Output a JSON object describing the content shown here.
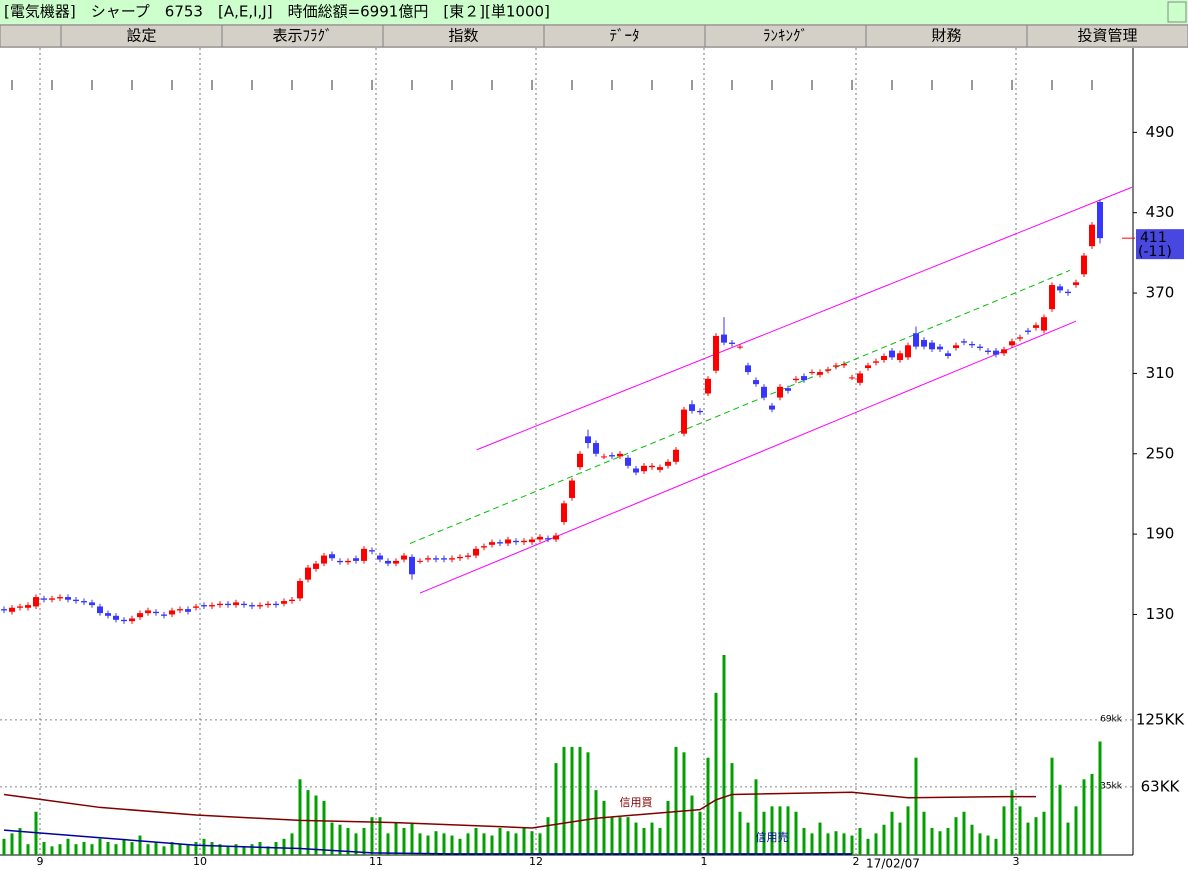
{
  "header": {
    "title": "[電気機器]　シャープ　6753　[A,E,I,J]　時価総額=6991億円　[東２][単1000]",
    "menu": [
      "設定",
      "表示ﾌﾗｸﾞ",
      "指数",
      "ﾃﾞｰﾀ",
      "ﾗﾝｷﾝｸﾞ",
      "財務",
      "投資管理"
    ]
  },
  "chart_data": [
    {
      "type": "candlestick",
      "up_color": "#ff0000",
      "down_color": "#3636ff",
      "ylim": [
        96,
        553
      ],
      "yticks": [
        130,
        190,
        250,
        310,
        370,
        430,
        490
      ],
      "categories": [
        null,
        null,
        null,
        null,
        null,
        "9",
        null,
        null,
        null,
        null,
        null,
        null,
        null,
        null,
        null,
        null,
        null,
        null,
        null,
        null,
        null,
        null,
        null,
        null,
        null,
        "10",
        null,
        null,
        null,
        null,
        null,
        null,
        null,
        null,
        null,
        null,
        null,
        null,
        null,
        null,
        null,
        null,
        null,
        null,
        null,
        null,
        null,
        "11",
        null,
        null,
        null,
        null,
        null,
        null,
        null,
        null,
        null,
        null,
        null,
        null,
        null,
        null,
        null,
        null,
        null,
        null,
        null,
        "12",
        null,
        null,
        null,
        null,
        null,
        null,
        null,
        null,
        null,
        null,
        null,
        null,
        null,
        null,
        null,
        null,
        null,
        null,
        null,
        null,
        "1",
        null,
        null,
        null,
        null,
        null,
        null,
        null,
        null,
        null,
        null,
        null,
        null,
        null,
        null,
        null,
        null,
        null,
        null,
        "2",
        null,
        null,
        null,
        null,
        null,
        null,
        null,
        null,
        null,
        null,
        null,
        null,
        null,
        null,
        null,
        null,
        null,
        null,
        null,
        "3",
        null,
        null,
        null,
        null,
        null,
        null,
        null,
        null,
        null,
        null
      ],
      "open": [
        134,
        132,
        135,
        135,
        136,
        142,
        141,
        142,
        143,
        141,
        140,
        139,
        136,
        131,
        129,
        126,
        125,
        128,
        131,
        132,
        130,
        130,
        133,
        134,
        135,
        137,
        136,
        137,
        138,
        137,
        138,
        137,
        136,
        137,
        138,
        138,
        140,
        142,
        156,
        164,
        168,
        175,
        170,
        169,
        172,
        170,
        178,
        174,
        170,
        168,
        171,
        173,
        170,
        171,
        172,
        172,
        171,
        172,
        173,
        174,
        180,
        182,
        184,
        183,
        185,
        184,
        184,
        186,
        187,
        186,
        199,
        217,
        240,
        263,
        258,
        248,
        249,
        248,
        247,
        239,
        237,
        240,
        238,
        241,
        244,
        265,
        287,
        282,
        295,
        312,
        339,
        333,
        330,
        316,
        305,
        300,
        286,
        292,
        299,
        305,
        308,
        311,
        309,
        312,
        315,
        316,
        307,
        303,
        314,
        318,
        320,
        327,
        320,
        322,
        340,
        335,
        333,
        330,
        325,
        329,
        334,
        332,
        330,
        327,
        327,
        325,
        331,
        336,
        342,
        344,
        342,
        358,
        375,
        371,
        376,
        384,
        405,
        438
      ],
      "high": [
        136,
        137,
        138,
        139,
        145,
        144,
        144,
        145,
        145,
        143,
        142,
        141,
        138,
        133,
        131,
        128,
        129,
        133,
        135,
        134,
        132,
        135,
        136,
        136,
        138,
        139,
        139,
        140,
        140,
        141,
        140,
        139,
        139,
        140,
        140,
        142,
        143,
        157,
        167,
        170,
        176,
        177,
        172,
        172,
        174,
        181,
        180,
        176,
        172,
        172,
        176,
        175,
        172,
        174,
        174,
        174,
        174,
        175,
        176,
        181,
        183,
        186,
        186,
        188,
        187,
        187,
        188,
        190,
        189,
        191,
        215,
        232,
        252,
        268,
        260,
        250,
        251,
        252,
        249,
        241,
        243,
        243,
        242,
        246,
        255,
        285,
        290,
        284,
        308,
        340,
        352,
        335,
        332,
        318,
        307,
        302,
        288,
        302,
        301,
        308,
        310,
        313,
        313,
        315,
        318,
        319,
        309,
        312,
        318,
        321,
        325,
        329,
        327,
        333,
        345,
        337,
        335,
        332,
        327,
        333,
        336,
        334,
        332,
        329,
        329,
        330,
        336,
        339,
        344,
        348,
        354,
        378,
        377,
        373,
        380,
        400,
        423,
        440
      ],
      "low": [
        131,
        130,
        133,
        133,
        134,
        139,
        139,
        140,
        139,
        138,
        137,
        135,
        129,
        127,
        124,
        123,
        123,
        126,
        129,
        129,
        127,
        128,
        131,
        130,
        133,
        134,
        134,
        135,
        135,
        135,
        135,
        134,
        134,
        135,
        135,
        136,
        138,
        140,
        154,
        162,
        166,
        170,
        167,
        167,
        168,
        168,
        175,
        169,
        166,
        166,
        169,
        156,
        168,
        169,
        169,
        169,
        169,
        170,
        171,
        172,
        178,
        180,
        181,
        181,
        182,
        182,
        182,
        184,
        184,
        184,
        197,
        215,
        238,
        254,
        248,
        246,
        246,
        246,
        239,
        234,
        235,
        238,
        236,
        239,
        242,
        263,
        280,
        279,
        293,
        310,
        331,
        330,
        328,
        309,
        300,
        290,
        281,
        290,
        295,
        303,
        303,
        309,
        307,
        310,
        313,
        314,
        305,
        301,
        312,
        316,
        318,
        320,
        318,
        320,
        328,
        328,
        326,
        326,
        321,
        327,
        331,
        329,
        327,
        324,
        322,
        323,
        329,
        334,
        339,
        342,
        340,
        356,
        370,
        368,
        374,
        382,
        403,
        407
      ],
      "close": [
        133,
        135,
        136,
        137,
        143,
        141,
        142,
        143,
        141,
        140,
        139,
        137,
        131,
        129,
        126,
        125,
        127,
        131,
        133,
        131,
        129,
        133,
        134,
        132,
        136,
        136,
        137,
        138,
        137,
        139,
        137,
        136,
        137,
        138,
        137,
        140,
        141,
        155,
        165,
        168,
        174,
        172,
        169,
        170,
        170,
        179,
        177,
        171,
        168,
        170,
        174,
        160,
        170,
        172,
        171,
        171,
        172,
        173,
        174,
        179,
        181,
        184,
        183,
        186,
        184,
        185,
        186,
        188,
        186,
        189,
        213,
        230,
        250,
        258,
        250,
        248,
        248,
        250,
        241,
        236,
        241,
        241,
        240,
        244,
        253,
        283,
        282,
        281,
        306,
        338,
        333,
        332,
        330,
        311,
        302,
        292,
        283,
        300,
        297,
        306,
        305,
        311,
        311,
        313,
        316,
        317,
        307,
        310,
        316,
        319,
        323,
        322,
        325,
        331,
        330,
        330,
        328,
        328,
        323,
        331,
        333,
        331,
        329,
        326,
        324,
        328,
        334,
        337,
        341,
        346,
        352,
        376,
        372,
        370,
        378,
        398,
        421,
        411
      ],
      "trend_lines": [
        {
          "color": "#ff00ff",
          "x": [
            59.1,
            141
          ],
          "values": [
            253,
            449
          ]
        },
        {
          "color": "#ff00ff",
          "x": [
            52,
            134
          ],
          "values": [
            146,
            349
          ]
        },
        {
          "color": "#00c000",
          "dashed": true,
          "x": [
            50.75,
            133.25
          ],
          "values": [
            183,
            387
          ]
        }
      ],
      "last_price_label": "411",
      "change_label": "(-11)",
      "date_label": "17/02/07"
    },
    {
      "type": "bar",
      "color": "#00a000",
      "ylim": [
        0,
        185
      ],
      "yticks": [
        {
          "value": 125,
          "label": "125KK"
        },
        {
          "value": 63,
          "label": "63KK"
        }
      ],
      "inner_tick_labels": [
        "69kk",
        "35kk"
      ],
      "values": [
        15,
        20,
        25,
        10,
        40,
        12,
        8,
        10,
        15,
        10,
        12,
        10,
        15,
        12,
        10,
        14,
        12,
        18,
        10,
        12,
        8,
        12,
        10,
        9,
        12,
        15,
        12,
        10,
        8,
        10,
        8,
        10,
        12,
        8,
        12,
        15,
        20,
        70,
        60,
        55,
        50,
        30,
        28,
        25,
        20,
        25,
        35,
        35,
        20,
        30,
        25,
        30,
        20,
        18,
        22,
        20,
        18,
        15,
        20,
        25,
        20,
        18,
        25,
        22,
        20,
        25,
        22,
        20,
        35,
        85,
        100,
        100,
        100,
        95,
        60,
        50,
        35,
        35,
        35,
        30,
        25,
        30,
        25,
        50,
        100,
        95,
        55,
        40,
        90,
        150,
        185,
        85,
        40,
        30,
        70,
        40,
        45,
        45,
        45,
        40,
        25,
        20,
        30,
        20,
        22,
        20,
        18,
        25,
        15,
        20,
        28,
        40,
        30,
        45,
        90,
        40,
        25,
        22,
        25,
        35,
        40,
        28,
        20,
        18,
        15,
        45,
        60,
        45,
        30,
        35,
        40,
        90,
        65,
        30,
        45,
        70,
        75,
        105
      ],
      "series": [
        {
          "name": "信用買",
          "color": "#800000",
          "x": [
            0,
            5,
            12,
            24,
            37,
            49,
            66,
            74,
            87,
            89,
            91,
            106,
            113,
            125,
            129
          ],
          "values": [
            56,
            51,
            44,
            37,
            32,
            30,
            25,
            34,
            42,
            51,
            56,
            58,
            53,
            54,
            54
          ]
        },
        {
          "name": "信用売",
          "color": "#0000a0",
          "x": [
            0,
            12,
            24,
            37,
            46,
            56,
            106
          ],
          "values": [
            23,
            16,
            9,
            6,
            2,
            1,
            1
          ]
        }
      ]
    }
  ]
}
